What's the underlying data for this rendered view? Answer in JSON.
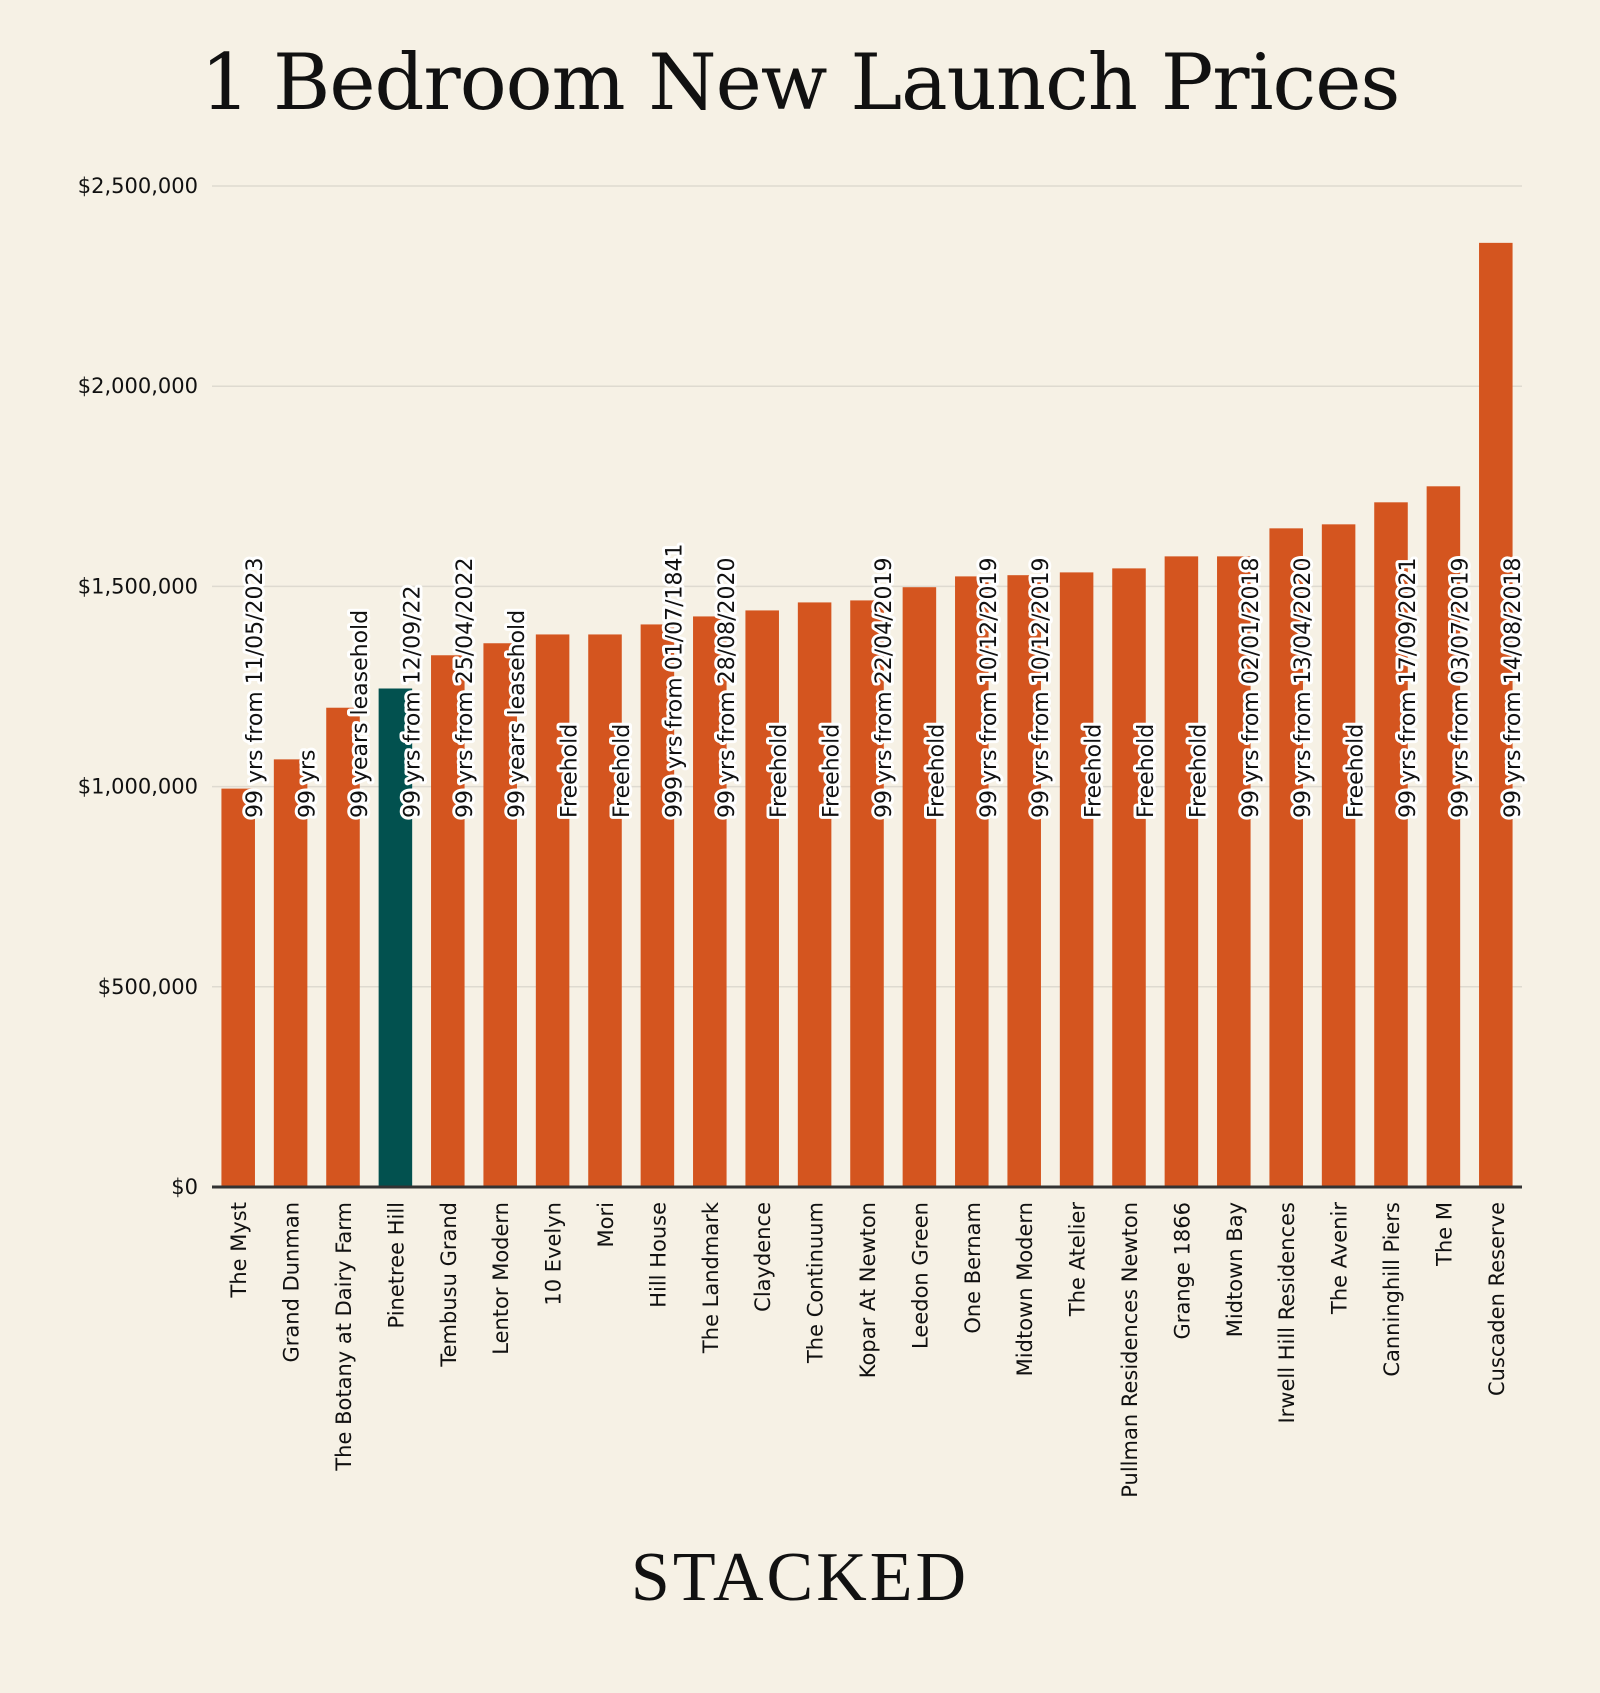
{
  "chart_data": {
    "type": "bar",
    "title": "1 Bedroom New Launch Prices",
    "xlabel": "",
    "ylabel": "",
    "ylim": [
      0,
      2500000
    ],
    "yticks": [
      0,
      500000,
      1000000,
      1500000,
      2000000,
      2500000
    ],
    "ytick_labels": [
      "$0",
      "$500,000",
      "$1,000,000",
      "$1,500,000",
      "$2,000,000",
      "$2,500,000"
    ],
    "grid": true,
    "legend": "none",
    "categories": [
      "The Myst",
      "Grand Dunman",
      "The Botany at Dairy Farm",
      "Pinetree Hill",
      "Tembusu Grand",
      "Lentor Modern",
      "10 Evelyn",
      "Mori",
      "Hill House",
      "The Landmark",
      "Claydence",
      "The Continuum",
      "Kopar At Newton",
      "Leedon Green",
      "One Bernam",
      "Midtown Modern",
      "The Atelier",
      "Pullman Residences Newton",
      "Grange 1866",
      "Midtown Bay",
      "Irwell Hill Residences",
      "The Avenir",
      "Canninghill Piers",
      "The M",
      "Cuscaden Reserve"
    ],
    "values": [
      995000,
      1068000,
      1197000,
      1245000,
      1328000,
      1358000,
      1380000,
      1380000,
      1405000,
      1425000,
      1440000,
      1460000,
      1465000,
      1498000,
      1525000,
      1528000,
      1535000,
      1545000,
      1575000,
      1575000,
      1645000,
      1655000,
      1710000,
      1750000,
      2358000
    ],
    "data_labels": [
      "99 yrs from 11/05/2023",
      "99 yrs",
      "99 years leasehold",
      "99 yrs from 12/09/22",
      "99 yrs from 25/04/2022",
      "99 years leasehold",
      "Freehold",
      "Freehold",
      "999 yrs from 01/07/1841",
      "99 yrs from 28/08/2020",
      "Freehold",
      "Freehold",
      "99 yrs from 22/04/2019",
      "Freehold",
      "99 yrs from 10/12/2019",
      "99 yrs from 10/12/2019",
      "Freehold",
      "Freehold",
      "Freehold",
      "99 yrs from 02/01/2018",
      "99 yrs from 13/04/2020",
      "Freehold",
      "99 yrs from 17/09/2021",
      "99 yrs from 03/07/2019",
      "99 yrs from 14/08/2018"
    ],
    "highlight_index": 3,
    "colors": {
      "bar": "#d4551f",
      "highlight": "#02514f",
      "grid": "#dedad0",
      "axis": "#333333"
    }
  },
  "branding": {
    "logo_text": "STACKED"
  }
}
